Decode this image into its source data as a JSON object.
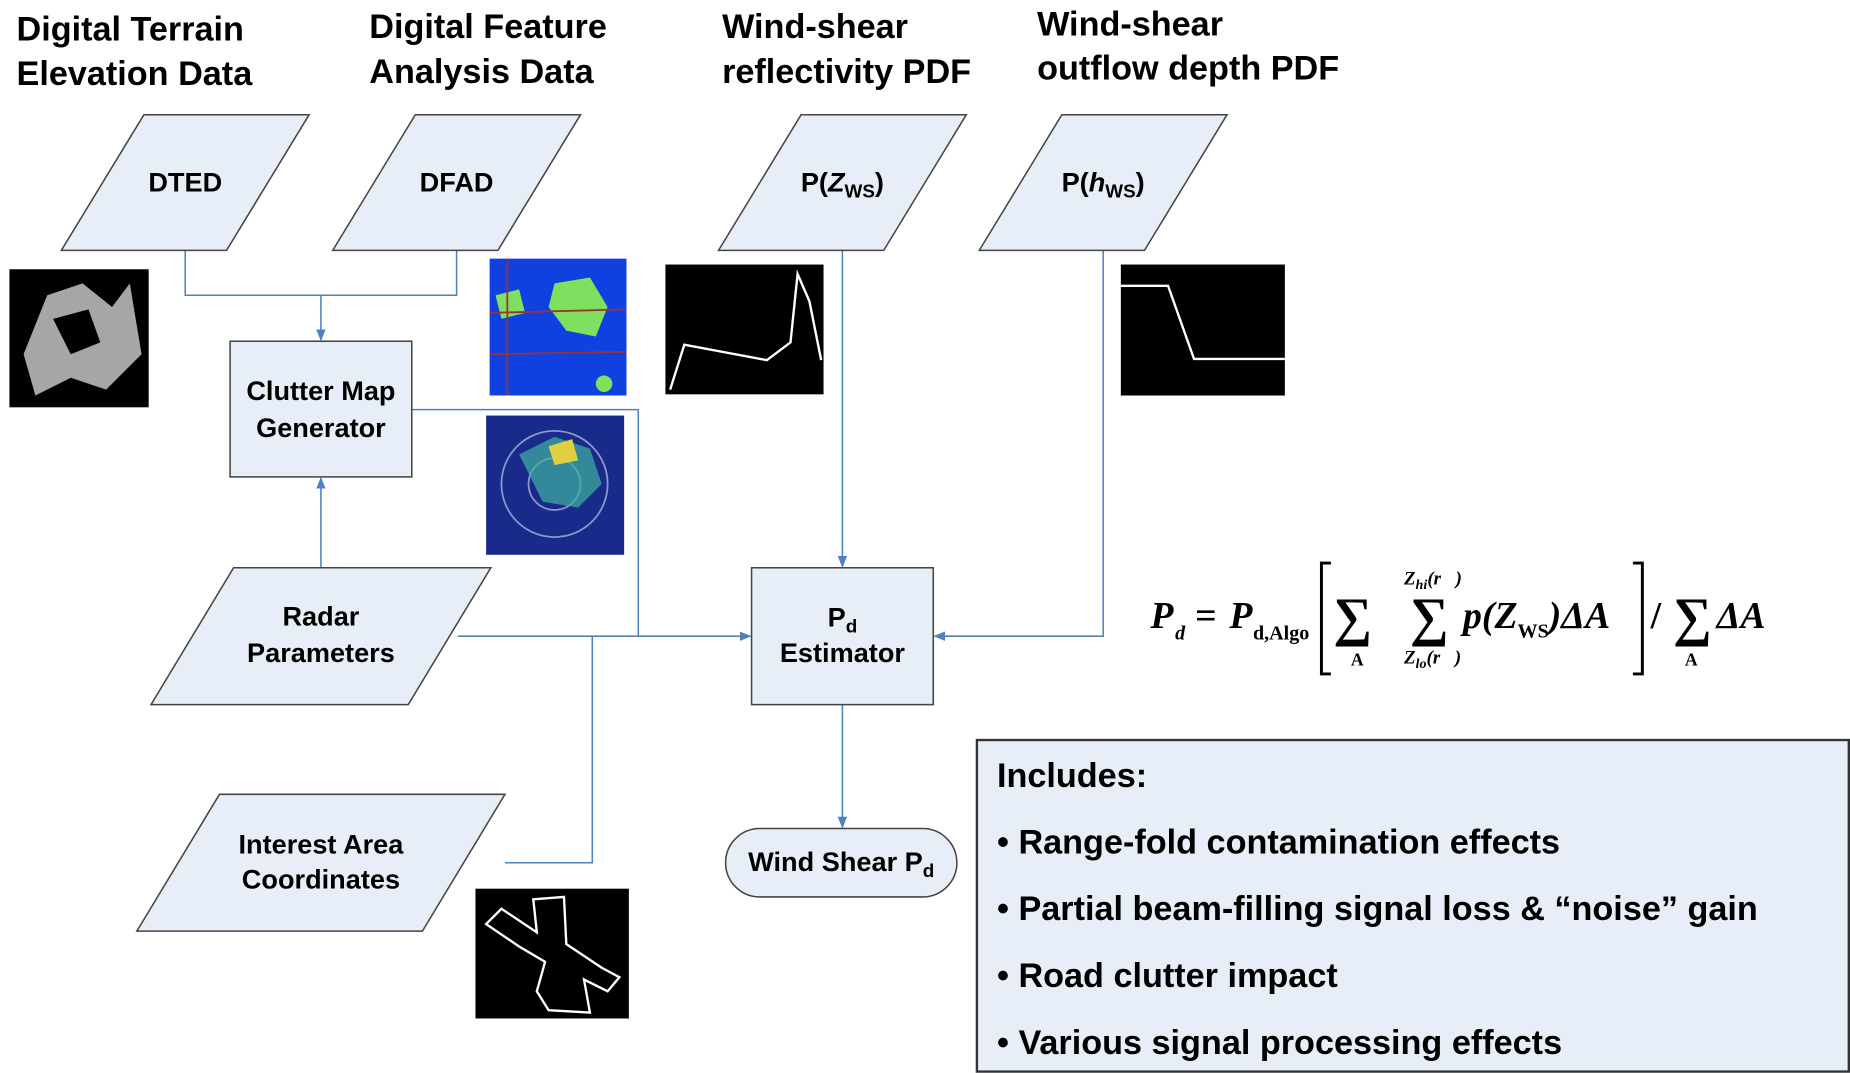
{
  "headers": [
    [
      "Digital Terrain",
      "Elevation Data"
    ],
    [
      "Digital Feature",
      "Analysis Data"
    ],
    [
      "Wind-shear",
      "reflectivity PDF"
    ],
    [
      "Wind-shear",
      "outflow depth PDF"
    ]
  ],
  "nodes": {
    "dted": "DTED",
    "dfad": "DFAD",
    "p_zws": [
      "P(",
      "Z",
      "WS",
      ")"
    ],
    "p_hws": [
      "P(",
      "h",
      "WS",
      ")"
    ],
    "clutter": [
      "Clutter Map",
      "Generator"
    ],
    "radar": [
      "Radar",
      "Parameters"
    ],
    "estimator": [
      "P",
      "d",
      "Estimator"
    ],
    "interest": [
      "Interest Area",
      "Coordinates"
    ],
    "output": [
      "Wind Shear P",
      "d"
    ]
  },
  "formula": {
    "lhs": "P",
    "lhs_sub": "d",
    "eq": "=",
    "algo": "P",
    "algo_sub": "d,Algo",
    "sum": "∑",
    "sum_under": "A",
    "upper": "Z",
    "upper_sub": "hi",
    "upper_arg": "(r⃗)",
    "lower": "Z",
    "lower_sub": "lo",
    "lower_arg": "(r⃗)",
    "term": "p(Z",
    "term_sub": "WS",
    "term_tail": ")ΔA",
    "slash": "/",
    "tail": "ΔA"
  },
  "includes": {
    "title": "Includes:",
    "items": [
      "• Range-fold contamination effects",
      "• Partial beam-filling signal loss & “noise” gain",
      "• Road clutter impact",
      "• Various signal processing effects"
    ]
  }
}
